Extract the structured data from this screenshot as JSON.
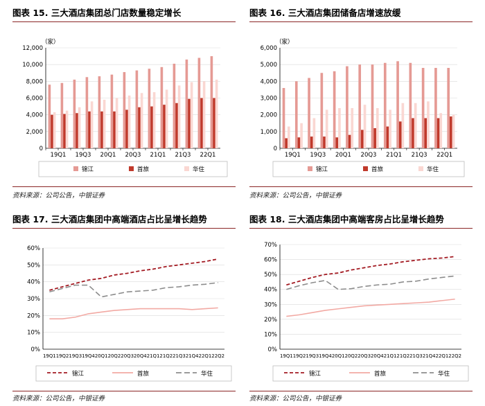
{
  "colors": {
    "jinjiang": "#e59a94",
    "shouly": "#c0392b",
    "huazhu": "#fad7d2",
    "line_jinjiang": "#a31a22",
    "line_shouly": "#f2a9a3",
    "line_huazhu": "#8c8c8c",
    "rule": "#8a2424"
  },
  "panels": [
    {
      "title": "图表 15. 三大酒店集团总门店数量稳定增长",
      "source": "资料来源：公司公告，中银证券",
      "chart_data": {
        "type": "bar",
        "unit": "（家）",
        "categories": [
          "19Q1",
          "19Q2",
          "19Q3",
          "19Q4",
          "20Q1",
          "20Q2",
          "20Q3",
          "20Q4",
          "21Q1",
          "21Q2",
          "21Q3",
          "21Q4",
          "22Q1",
          "22Q2"
        ],
        "tick_labels": [
          "19Q1",
          "19Q3",
          "20Q1",
          "20Q3",
          "21Q1",
          "21Q3",
          "22Q1"
        ],
        "ylim": [
          0,
          12000
        ],
        "yticks": [
          "0",
          "2,000",
          "4,000",
          "6,000",
          "8,000",
          "10,000",
          "12,000"
        ],
        "series": [
          {
            "name": "锦江",
            "values": [
              7600,
              7800,
              8200,
              8500,
              8600,
              8800,
              9100,
              9300,
              9500,
              9700,
              10100,
              10600,
              10800,
              11000
            ]
          },
          {
            "name": "首旅",
            "values": [
              4000,
              4100,
              4200,
              4400,
              4400,
              4400,
              4600,
              4900,
              5000,
              5200,
              5400,
              5900,
              6000,
              6000
            ]
          },
          {
            "name": "华住",
            "values": [
              4300,
              4500,
              4900,
              5600,
              5800,
              6000,
              6300,
              6600,
              6700,
              7000,
              7500,
              7900,
              8000,
              8200
            ]
          }
        ],
        "legend": [
          "锦江",
          "首旅",
          "华住"
        ],
        "legend_position": "bottom"
      }
    },
    {
      "title": "图表 16. 三大酒店集团储备店增速放缓",
      "source": "资料来源：公司公告，中银证券",
      "chart_data": {
        "type": "bar",
        "unit": "（家）",
        "categories": [
          "19Q1",
          "19Q2",
          "19Q3",
          "19Q4",
          "20Q1",
          "20Q2",
          "20Q3",
          "20Q4",
          "21Q1",
          "21Q2",
          "21Q3",
          "21Q4",
          "22Q1",
          "22Q2"
        ],
        "tick_labels": [
          "19Q1",
          "19Q3",
          "20Q1",
          "20Q3",
          "21Q1",
          "21Q3",
          "22Q1"
        ],
        "ylim": [
          0,
          6000
        ],
        "yticks": [
          "0",
          "1,000",
          "2,000",
          "3,000",
          "4,000",
          "5,000",
          "6,000"
        ],
        "series": [
          {
            "name": "锦江",
            "values": [
              3600,
              4000,
              4200,
              4500,
              4600,
              4900,
              5000,
              5000,
              5100,
              5200,
              5100,
              4800,
              4800,
              4800
            ]
          },
          {
            "name": "首旅",
            "values": [
              600,
              650,
              700,
              700,
              650,
              800,
              1100,
              1200,
              1300,
              1600,
              1800,
              1800,
              1800,
              1900
            ]
          },
          {
            "name": "华住",
            "values": [
              1300,
              1500,
              1800,
              2300,
              2400,
              2400,
              2600,
              2400,
              2300,
              2700,
              2700,
              2800,
              2100,
              2000
            ]
          }
        ],
        "legend": [
          "锦江",
          "首旅",
          "华住"
        ],
        "legend_position": "bottom"
      }
    },
    {
      "title": "图表 17. 三大酒店集团中高端酒店占比呈增长趋势",
      "source": "资料来源：公司公告，中银证券",
      "chart_data": {
        "type": "line",
        "categories": [
          "19Q1",
          "19Q2",
          "19Q3",
          "19Q4",
          "20Q1",
          "20Q2",
          "20Q3",
          "20Q4",
          "21Q1",
          "21Q2",
          "21Q3",
          "21Q4",
          "22Q1",
          "22Q2"
        ],
        "ylim": [
          0,
          60
        ],
        "yticks": [
          "0%",
          "10%",
          "20%",
          "30%",
          "40%",
          "50%",
          "60%"
        ],
        "series": [
          {
            "name": "锦江",
            "values": [
              35,
              37,
              39,
              41,
              42,
              44,
              45,
              46.5,
              47.5,
              49,
              50,
              51,
              52,
              53.5
            ],
            "style": "dashed"
          },
          {
            "name": "首旅",
            "values": [
              18,
              18,
              19,
              21,
              22,
              23,
              23.5,
              24,
              24,
              24,
              24,
              23.5,
              24,
              24.5
            ],
            "style": "solid"
          },
          {
            "name": "华住",
            "values": [
              34,
              36,
              38,
              38,
              31,
              32.5,
              34,
              34.5,
              35,
              36.5,
              37,
              38,
              38.5,
              39.5
            ],
            "style": "longdash"
          }
        ],
        "legend": [
          "锦江",
          "首旅",
          "华住"
        ],
        "legend_position": "bottom"
      }
    },
    {
      "title": "图表 18. 三大酒店集团中高端客房占比呈增长趋势",
      "source": "资料来源：公司公告，中银证券",
      "chart_data": {
        "type": "line",
        "categories": [
          "19Q1",
          "19Q2",
          "19Q3",
          "19Q4",
          "20Q1",
          "20Q2",
          "20Q3",
          "20Q4",
          "21Q1",
          "21Q2",
          "21Q3",
          "21Q4",
          "22Q1",
          "22Q2"
        ],
        "ylim": [
          0,
          70
        ],
        "yticks": [
          "0%",
          "10%",
          "20%",
          "30%",
          "40%",
          "50%",
          "60%",
          "70%"
        ],
        "series": [
          {
            "name": "锦江",
            "values": [
              43,
              45.5,
              48,
              50,
              51,
              53,
              54.5,
              56,
              57,
              58.5,
              59.5,
              60.5,
              61,
              62
            ],
            "style": "dashed"
          },
          {
            "name": "首旅",
            "values": [
              22,
              23,
              24.5,
              26,
              27,
              28,
              29,
              29.5,
              30,
              30.5,
              31,
              31.5,
              32.5,
              33.5
            ],
            "style": "solid"
          },
          {
            "name": "华住",
            "values": [
              40,
              42.5,
              44.5,
              46,
              40,
              40.5,
              42,
              43,
              43.5,
              45,
              45.5,
              47,
              48,
              49
            ],
            "style": "longdash"
          }
        ],
        "legend": [
          "锦江",
          "首旅",
          "华住"
        ],
        "legend_position": "bottom"
      }
    }
  ]
}
